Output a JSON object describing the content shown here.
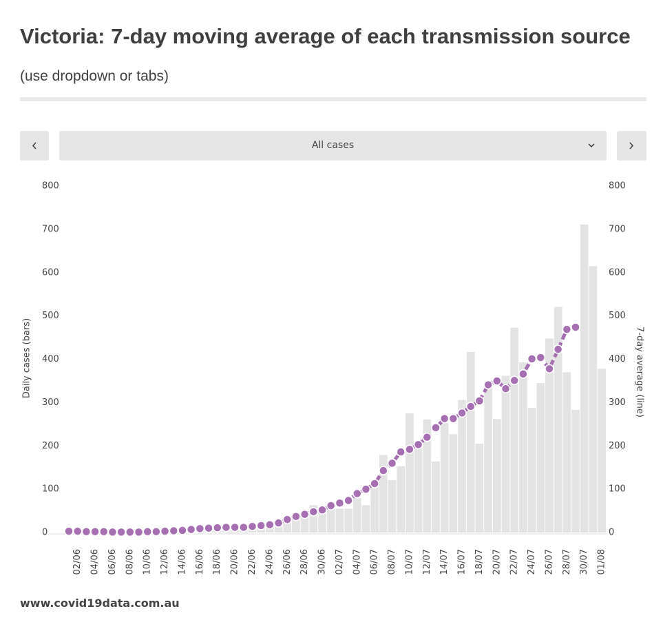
{
  "title": "Victoria: 7-day moving average of each transmission source",
  "subtitle": "(use dropdown or tabs)",
  "controls": {
    "dropdown": "All cases"
  },
  "source": "www.covid19data.com.au",
  "chart_data": {
    "type": "bar",
    "ylabel": "Daily cases (bars)",
    "y2label": "7-day average (line)",
    "categories": [
      null,
      "02/06",
      null,
      "04/06",
      null,
      "06/06",
      null,
      "08/06",
      null,
      "10/06",
      null,
      "12/06",
      null,
      "14/06",
      null,
      "16/06",
      null,
      "18/06",
      null,
      "20/06",
      null,
      "22/06",
      null,
      "24/06",
      null,
      "26/06",
      null,
      "28/06",
      null,
      "30/06",
      null,
      "02/07",
      null,
      "04/07",
      null,
      "06/07",
      null,
      "08/07",
      null,
      "10/07",
      null,
      "12/07",
      null,
      "14/07",
      null,
      "16/07",
      null,
      "18/07",
      null,
      "20/07",
      null,
      "22/07",
      null,
      "24/07",
      null,
      "26/07",
      null,
      "28/07",
      null,
      "30/07",
      null,
      "01/08"
    ],
    "series": [
      {
        "type": "bar",
        "color": "#e3e3e3",
        "values": [
          4,
          1,
          2,
          3,
          1,
          0,
          1,
          1,
          2,
          6,
          4,
          3,
          8,
          5,
          9,
          12,
          16,
          18,
          13,
          19,
          8,
          14,
          19,
          16,
          19,
          30,
          32,
          40,
          63,
          50,
          55,
          55,
          55,
          79,
          63,
          108,
          179,
          121,
          153,
          275,
          205,
          261,
          164,
          253,
          227,
          306,
          417,
          205,
          350,
          262,
          362,
          473,
          393,
          288,
          345,
          448,
          521,
          370,
          283,
          711,
          615,
          378
        ]
      },
      {
        "type": "line",
        "axis": "y2",
        "color": "#a56fb1",
        "values": [
          3,
          3,
          2,
          2,
          2,
          1,
          1,
          1,
          1,
          2,
          2,
          3,
          4,
          5,
          7,
          9,
          10,
          11,
          12,
          12,
          12,
          14,
          16,
          18,
          22,
          30,
          37,
          42,
          48,
          52,
          62,
          68,
          74,
          90,
          100,
          113,
          143,
          160,
          186,
          192,
          203,
          220,
          242,
          263,
          263,
          276,
          291,
          304,
          341,
          350,
          332,
          351,
          366,
          401,
          404,
          378,
          423,
          469,
          474,
          null,
          null,
          null
        ]
      }
    ],
    "ylim": [
      0,
      800
    ],
    "yticks": [
      0,
      100,
      200,
      300,
      400,
      500,
      600,
      700,
      800
    ],
    "y2lim": [
      0,
      800
    ],
    "y2ticks": [
      0,
      100,
      200,
      300,
      400,
      500,
      600,
      700,
      800
    ],
    "grid": false
  }
}
